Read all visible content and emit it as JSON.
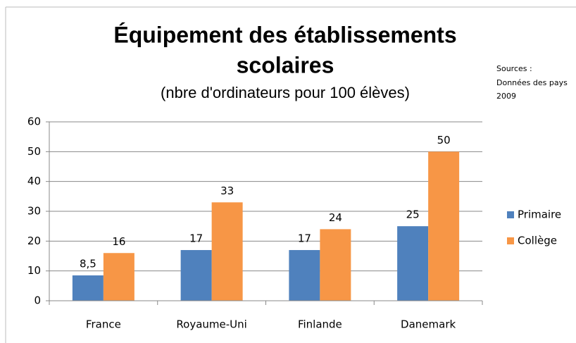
{
  "chart_data": {
    "type": "bar",
    "title": [
      "Équipement des établissements",
      "scolaires"
    ],
    "subtitle": "(nbre d'ordinateurs pour 100 élèves)",
    "annotation": [
      "Sources :",
      "Données des pays",
      "2009"
    ],
    "categories": [
      "France",
      "Royaume-Uni",
      "Finlande",
      "Danemark"
    ],
    "series": [
      {
        "name": "Primaire",
        "color": "#4f81bd",
        "values": [
          8.5,
          17,
          17,
          25
        ],
        "value_labels": [
          "8,5",
          "17",
          "17",
          "25"
        ]
      },
      {
        "name": "Collège",
        "color": "#f79646",
        "values": [
          16,
          33,
          24,
          50
        ]
      }
    ],
    "ylim": [
      0,
      60
    ],
    "yticks": [
      0,
      10,
      20,
      30,
      40,
      50,
      60
    ],
    "grid": true,
    "legend": "right"
  }
}
